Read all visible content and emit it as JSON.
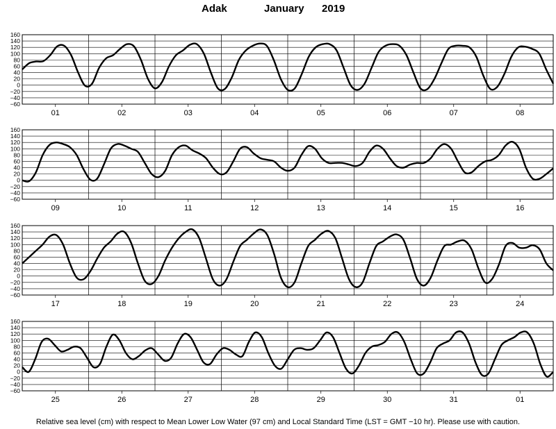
{
  "title": {
    "station": "Adak",
    "month": "January",
    "year": "2019"
  },
  "footnote": "Relative sea level (cm) with respect to Mean Lower Low Water (97 cm) and Local Standard Time (LST = GMT −10 hr). Please use with caution.",
  "chart_data": {
    "type": "line",
    "title": "Adak January 2019",
    "xlabel": "",
    "ylabel": "",
    "ylim": [
      -60,
      160
    ],
    "yticks": [
      -60,
      -40,
      -20,
      0,
      20,
      40,
      60,
      80,
      100,
      120,
      140,
      160
    ],
    "grid": true,
    "panels": [
      {
        "day_labels": [
          "01",
          "02",
          "03",
          "04",
          "05",
          "06",
          "07",
          "08"
        ],
        "values": [
          50,
          70,
          75,
          76,
          95,
          123,
          125,
          95,
          40,
          -2,
          5,
          55,
          85,
          95,
          115,
          130,
          123,
          80,
          20,
          -10,
          10,
          60,
          95,
          110,
          128,
          130,
          100,
          40,
          -10,
          -12,
          25,
          80,
          110,
          125,
          132,
          125,
          80,
          20,
          -15,
          -10,
          35,
          90,
          120,
          130,
          130,
          110,
          55,
          0,
          -15,
          5,
          55,
          105,
          125,
          130,
          125,
          95,
          40,
          -10,
          -12,
          20,
          70,
          115,
          125,
          125,
          120,
          90,
          30,
          -12,
          -5,
          35,
          90,
          120,
          122,
          115,
          100,
          50,
          5
        ]
      },
      {
        "day_labels": [
          "09",
          "10",
          "11",
          "12",
          "13",
          "14",
          "15",
          "16"
        ],
        "values": [
          0,
          -3,
          25,
          80,
          112,
          120,
          115,
          105,
          80,
          35,
          2,
          5,
          50,
          100,
          115,
          110,
          100,
          90,
          55,
          20,
          10,
          30,
          80,
          105,
          110,
          95,
          85,
          70,
          40,
          20,
          25,
          60,
          100,
          105,
          85,
          70,
          65,
          60,
          40,
          30,
          40,
          80,
          108,
          100,
          70,
          55,
          55,
          55,
          50,
          45,
          55,
          90,
          110,
          100,
          70,
          45,
          40,
          50,
          55,
          55,
          70,
          100,
          115,
          100,
          60,
          25,
          25,
          45,
          60,
          65,
          80,
          110,
          122,
          100,
          40,
          5,
          5,
          20,
          38
        ]
      },
      {
        "day_labels": [
          "17",
          "18",
          "19",
          "20",
          "21",
          "22",
          "23",
          "24"
        ],
        "values": [
          40,
          60,
          80,
          100,
          125,
          130,
          100,
          40,
          -5,
          -10,
          15,
          55,
          90,
          110,
          135,
          140,
          105,
          40,
          -15,
          -25,
          0,
          50,
          90,
          120,
          140,
          148,
          120,
          55,
          -10,
          -30,
          -10,
          45,
          95,
          115,
          135,
          148,
          130,
          70,
          -5,
          -35,
          -20,
          40,
          95,
          115,
          135,
          143,
          120,
          55,
          -10,
          -35,
          -20,
          40,
          95,
          110,
          125,
          132,
          115,
          55,
          -10,
          -30,
          -5,
          50,
          95,
          100,
          110,
          112,
          85,
          25,
          -20,
          -10,
          35,
          95,
          105,
          90,
          90,
          98,
          85,
          40,
          18
        ]
      },
      {
        "day_labels": [
          "25",
          "26",
          "27",
          "28",
          "29",
          "30",
          "31",
          "01"
        ],
        "values": [
          15,
          0,
          40,
          95,
          105,
          85,
          65,
          70,
          80,
          75,
          45,
          15,
          25,
          80,
          118,
          100,
          60,
          40,
          50,
          68,
          75,
          55,
          35,
          45,
          90,
          120,
          110,
          70,
          30,
          25,
          55,
          75,
          70,
          55,
          50,
          95,
          125,
          110,
          60,
          20,
          10,
          40,
          70,
          75,
          70,
          75,
          100,
          125,
          110,
          60,
          10,
          -5,
          20,
          60,
          80,
          85,
          95,
          120,
          125,
          95,
          40,
          -5,
          -5,
          30,
          75,
          90,
          100,
          125,
          125,
          90,
          30,
          -10,
          -5,
          40,
          85,
          100,
          110,
          125,
          125,
          90,
          25,
          -15,
          0
        ]
      }
    ]
  }
}
